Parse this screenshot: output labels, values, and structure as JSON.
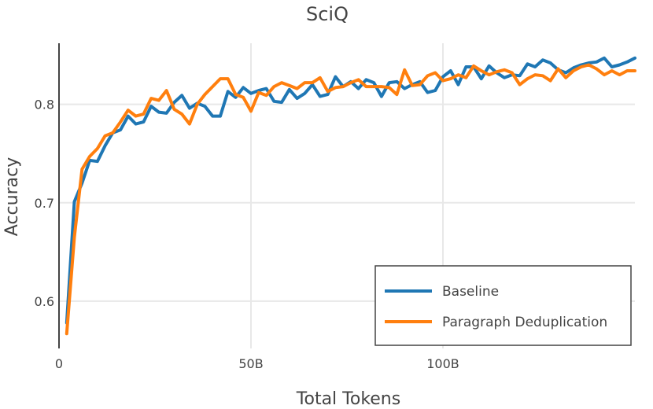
{
  "chart_data": {
    "type": "line",
    "title": "SciQ",
    "xlabel": "Total Tokens",
    "ylabel": "Accuracy",
    "xlim": [
      0,
      150
    ],
    "ylim": [
      0.552,
      0.862
    ],
    "x_ticks": [
      {
        "value": 0,
        "label": "0"
      },
      {
        "value": 50,
        "label": "50B"
      },
      {
        "value": 100,
        "label": "100B"
      }
    ],
    "y_ticks": [
      {
        "value": 0.6,
        "label": "0.6"
      },
      {
        "value": 0.7,
        "label": "0.7"
      },
      {
        "value": 0.8,
        "label": "0.8"
      }
    ],
    "grid": true,
    "legend_position": "bottom-right",
    "x": [
      2,
      4,
      6,
      8,
      10,
      12,
      14,
      16,
      18,
      20,
      22,
      24,
      26,
      28,
      30,
      32,
      34,
      36,
      38,
      40,
      42,
      44,
      46,
      48,
      50,
      52,
      54,
      56,
      58,
      60,
      62,
      64,
      66,
      68,
      70,
      72,
      74,
      76,
      78,
      80,
      82,
      84,
      86,
      88,
      90,
      92,
      94,
      96,
      98,
      100,
      102,
      104,
      106,
      108,
      110,
      112,
      114,
      116,
      118,
      120,
      122,
      124,
      126,
      128,
      130,
      132,
      134,
      136,
      138,
      140,
      142,
      144,
      146,
      148,
      150
    ],
    "series": [
      {
        "name": "Baseline",
        "color": "#1f77b4",
        "values": [
          0.578,
          0.701,
          0.72,
          0.743,
          0.742,
          0.758,
          0.771,
          0.774,
          0.788,
          0.78,
          0.782,
          0.798,
          0.792,
          0.791,
          0.802,
          0.809,
          0.796,
          0.801,
          0.798,
          0.788,
          0.788,
          0.813,
          0.807,
          0.817,
          0.811,
          0.814,
          0.816,
          0.803,
          0.802,
          0.815,
          0.806,
          0.811,
          0.82,
          0.808,
          0.81,
          0.828,
          0.818,
          0.823,
          0.816,
          0.825,
          0.822,
          0.808,
          0.822,
          0.823,
          0.816,
          0.82,
          0.823,
          0.812,
          0.814,
          0.828,
          0.834,
          0.82,
          0.838,
          0.838,
          0.826,
          0.839,
          0.832,
          0.827,
          0.83,
          0.829,
          0.841,
          0.838,
          0.845,
          0.842,
          0.835,
          0.832,
          0.837,
          0.84,
          0.842,
          0.843,
          0.847,
          0.838,
          0.84,
          0.843,
          0.847
        ]
      },
      {
        "name": "Paragraph Deduplication",
        "color": "#ff7f0e",
        "values": [
          0.567,
          0.665,
          0.734,
          0.747,
          0.755,
          0.768,
          0.771,
          0.782,
          0.794,
          0.788,
          0.79,
          0.806,
          0.804,
          0.814,
          0.795,
          0.79,
          0.78,
          0.8,
          0.81,
          0.818,
          0.826,
          0.826,
          0.81,
          0.807,
          0.793,
          0.812,
          0.809,
          0.818,
          0.822,
          0.819,
          0.816,
          0.822,
          0.822,
          0.827,
          0.813,
          0.817,
          0.818,
          0.822,
          0.825,
          0.818,
          0.818,
          0.818,
          0.817,
          0.81,
          0.835,
          0.819,
          0.82,
          0.829,
          0.832,
          0.824,
          0.826,
          0.83,
          0.827,
          0.839,
          0.834,
          0.83,
          0.833,
          0.835,
          0.832,
          0.82,
          0.826,
          0.83,
          0.829,
          0.824,
          0.836,
          0.827,
          0.834,
          0.838,
          0.84,
          0.836,
          0.83,
          0.834,
          0.83,
          0.834,
          0.834
        ]
      }
    ]
  }
}
